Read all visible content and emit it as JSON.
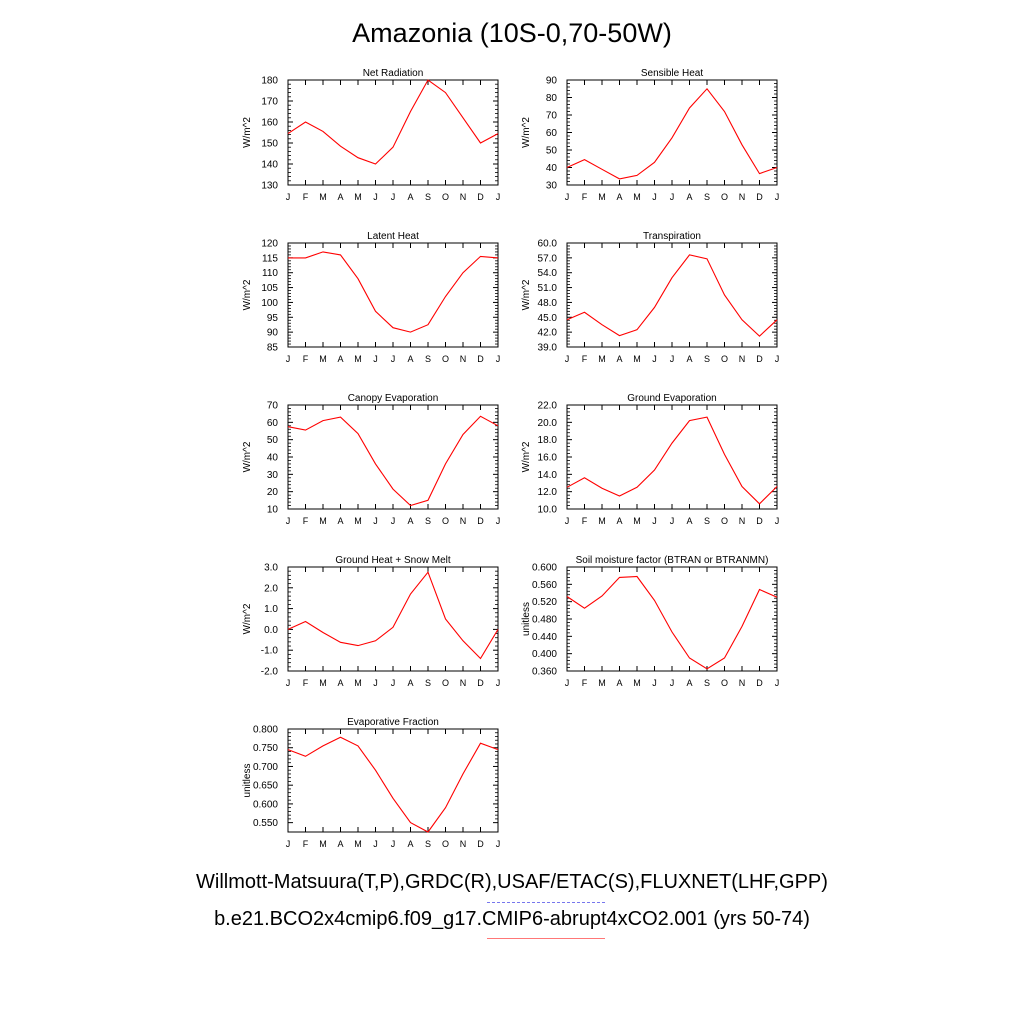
{
  "title": "Amazonia (10S-0,70-50W)",
  "legend": [
    {
      "label": "Willmott-Matsuura(T,P),GRDC(R),USAF/ETAC(S),FLUXNET(LHF,GPP)",
      "color": "#5555ee",
      "style": "dashed"
    },
    {
      "label": "b.e21.BCO2x4cmip6.f09_g17.CMIP6-abrupt4xCO2.001 (yrs 50-74)",
      "color": "#ff0000",
      "style": "solid"
    }
  ],
  "chart_data": [
    {
      "type": "line",
      "title": "Net Radiation",
      "ylabel": "W/m^2",
      "x": [
        "J",
        "F",
        "M",
        "A",
        "M",
        "J",
        "J",
        "A",
        "S",
        "O",
        "N",
        "D",
        "J"
      ],
      "ylim": [
        130,
        180
      ],
      "yticks": [
        "130",
        "140",
        "150",
        "160",
        "170",
        "180"
      ],
      "series": [
        {
          "color": "#ff0000",
          "values": [
            154.5,
            160,
            155.5,
            148.5,
            143,
            140,
            148,
            165,
            180,
            174,
            162,
            150,
            154.5
          ]
        }
      ]
    },
    {
      "type": "line",
      "title": "Sensible Heat",
      "ylabel": "W/m^2",
      "x": [
        "J",
        "F",
        "M",
        "A",
        "M",
        "J",
        "J",
        "A",
        "S",
        "O",
        "N",
        "D",
        "J"
      ],
      "ylim": [
        30,
        90
      ],
      "yticks": [
        "30",
        "40",
        "50",
        "60",
        "70",
        "80",
        "90"
      ],
      "series": [
        {
          "color": "#ff0000",
          "values": [
            40,
            44.5,
            39,
            33.5,
            35.5,
            43,
            57,
            74,
            85,
            72,
            53,
            36.5,
            40
          ]
        }
      ]
    },
    {
      "type": "line",
      "title": "Latent Heat",
      "ylabel": "W/m^2",
      "x": [
        "J",
        "F",
        "M",
        "A",
        "M",
        "J",
        "J",
        "A",
        "S",
        "O",
        "N",
        "D",
        "J"
      ],
      "ylim": [
        85,
        120
      ],
      "yticks": [
        "85",
        "90",
        "95",
        "100",
        "105",
        "110",
        "115",
        "120"
      ],
      "series": [
        {
          "color": "#ff0000",
          "values": [
            115,
            115,
            117,
            116,
            108,
            97,
            91.5,
            90,
            92.5,
            102,
            110,
            115.5,
            115
          ]
        }
      ]
    },
    {
      "type": "line",
      "title": "Transpiration",
      "ylabel": "W/m^2",
      "x": [
        "J",
        "F",
        "M",
        "A",
        "M",
        "J",
        "J",
        "A",
        "S",
        "O",
        "N",
        "D",
        "J"
      ],
      "ylim": [
        39,
        60
      ],
      "yticks": [
        "39.0",
        "42.0",
        "45.0",
        "48.0",
        "51.0",
        "54.0",
        "57.0",
        "60.0"
      ],
      "series": [
        {
          "color": "#ff0000",
          "values": [
            44.5,
            46,
            43.5,
            41.3,
            42.5,
            47,
            53,
            57.6,
            56.8,
            49.5,
            44.5,
            41.2,
            44.5
          ]
        }
      ]
    },
    {
      "type": "line",
      "title": "Canopy Evaporation",
      "ylabel": "W/m^2",
      "x": [
        "J",
        "F",
        "M",
        "A",
        "M",
        "J",
        "J",
        "A",
        "S",
        "O",
        "N",
        "D",
        "J"
      ],
      "ylim": [
        10,
        70
      ],
      "yticks": [
        "10",
        "20",
        "30",
        "40",
        "50",
        "60",
        "70"
      ],
      "series": [
        {
          "color": "#ff0000",
          "values": [
            57.5,
            55.5,
            61,
            63,
            53.5,
            36,
            21.5,
            12,
            15,
            36,
            53,
            63.5,
            58
          ]
        }
      ]
    },
    {
      "type": "line",
      "title": "Ground Evaporation",
      "ylabel": "W/m^2",
      "x": [
        "J",
        "F",
        "M",
        "A",
        "M",
        "J",
        "J",
        "A",
        "S",
        "O",
        "N",
        "D",
        "J"
      ],
      "ylim": [
        10,
        22
      ],
      "yticks": [
        "10.0",
        "12.0",
        "14.0",
        "16.0",
        "18.0",
        "20.0",
        "22.0"
      ],
      "series": [
        {
          "color": "#ff0000",
          "values": [
            12.5,
            13.6,
            12.4,
            11.5,
            12.5,
            14.5,
            17.6,
            20.2,
            20.6,
            16.3,
            12.6,
            10.6,
            12.6
          ]
        }
      ]
    },
    {
      "type": "line",
      "title": "Ground Heat + Snow Melt",
      "ylabel": "W/m^2",
      "x": [
        "J",
        "F",
        "M",
        "A",
        "M",
        "J",
        "J",
        "A",
        "S",
        "O",
        "N",
        "D",
        "J"
      ],
      "ylim": [
        -2,
        3
      ],
      "yticks": [
        "-2.0",
        "-1.0",
        "0.0",
        "1.0",
        "2.0",
        "3.0"
      ],
      "series": [
        {
          "color": "#ff0000",
          "values": [
            0,
            0.38,
            -0.15,
            -0.62,
            -0.78,
            -0.55,
            0.1,
            1.7,
            2.75,
            0.5,
            -0.55,
            -1.4,
            0
          ]
        }
      ]
    },
    {
      "type": "line",
      "title": "Soil moisture factor (BTRAN or BTRANMN)",
      "ylabel": "unitless",
      "x": [
        "J",
        "F",
        "M",
        "A",
        "M",
        "J",
        "J",
        "A",
        "S",
        "O",
        "N",
        "D",
        "J"
      ],
      "ylim": [
        0.36,
        0.6
      ],
      "yticks": [
        "0.360",
        "0.400",
        "0.440",
        "0.480",
        "0.520",
        "0.560",
        "0.600"
      ],
      "series": [
        {
          "color": "#ff0000",
          "values": [
            0.532,
            0.505,
            0.533,
            0.576,
            0.578,
            0.523,
            0.45,
            0.39,
            0.365,
            0.39,
            0.463,
            0.548,
            0.53
          ]
        }
      ]
    },
    {
      "type": "line",
      "title": "Evaporative Fraction",
      "ylabel": "unitless",
      "x": [
        "J",
        "F",
        "M",
        "A",
        "M",
        "J",
        "J",
        "A",
        "S",
        "O",
        "N",
        "D",
        "J"
      ],
      "ylim": [
        0.525,
        0.8
      ],
      "yticks": [
        "0.550",
        "0.600",
        "0.650",
        "0.700",
        "0.750",
        "0.800"
      ],
      "series": [
        {
          "color": "#ff0000",
          "values": [
            0.745,
            0.727,
            0.755,
            0.778,
            0.755,
            0.69,
            0.615,
            0.55,
            0.525,
            0.59,
            0.68,
            0.762,
            0.745
          ]
        }
      ]
    }
  ]
}
